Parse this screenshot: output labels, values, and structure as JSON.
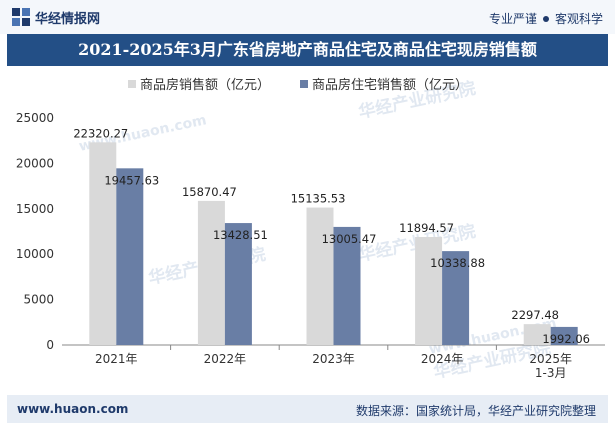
{
  "header": {
    "brand": "华经情报网",
    "slogan_left": "专业严谨",
    "slogan_right": "客观科学"
  },
  "colors": {
    "brand_dark": "#1f3a6b",
    "title_bg": "#234f86",
    "series_sales": "#d9d9d9",
    "series_residential": "#697ea5",
    "watermark": "#c9d6e6"
  },
  "watermarks": [
    "华经产业研究院",
    "www.huaon.com"
  ],
  "chart_data": {
    "type": "bar",
    "title": "2021-2025年3月广东省房地产商品住宅及商品住宅现房销售额",
    "xlabel": "",
    "ylabel": "",
    "ylim": [
      0,
      25000
    ],
    "yticks": [
      0,
      5000,
      10000,
      15000,
      20000,
      25000
    ],
    "grid": false,
    "legend_position": "top",
    "categories": [
      "2021年",
      "2022年",
      "2023年",
      "2024年",
      "2025年\n1-3月"
    ],
    "series": [
      {
        "name": "商品房销售额（亿元）",
        "values": [
          22320.27,
          15870.47,
          15135.53,
          11894.57,
          2297.48
        ],
        "labels": [
          "22320.27",
          "15870.47",
          "15135.53",
          "11894.57",
          "2297.48"
        ]
      },
      {
        "name": "商品房住宅销售额（亿元）",
        "values": [
          19457.63,
          13428.51,
          13005.47,
          10338.88,
          1992.06
        ],
        "labels": [
          "19457.63",
          "13428.51",
          "13005.47",
          "10338.88",
          "1992.06"
        ]
      }
    ]
  },
  "footer": {
    "url": "www.huaon.com",
    "source": "数据来源：国家统计局，华经产业研究院整理"
  }
}
